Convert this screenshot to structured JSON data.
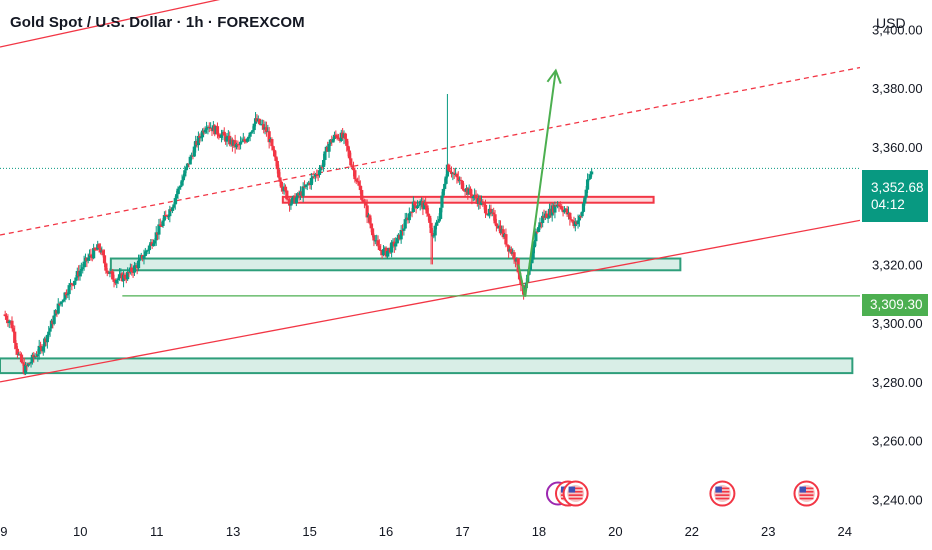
{
  "header": {
    "title": "Gold Spot / U.S. Dollar · 1h · FOREXCOM",
    "currency": "USD"
  },
  "price_badge": {
    "price": "3,352.68",
    "countdown": "04:12"
  },
  "level_badge": {
    "value": "3,309.30"
  },
  "colors": {
    "up": "#089981",
    "down": "#f23645",
    "channel": "#f23645",
    "zone_green": "#2e9e7a",
    "zone_red": "#f23645",
    "arrow": "#4caf50",
    "current_price_line": "#089981"
  },
  "chart_data": {
    "type": "candlestick",
    "title": "Gold Spot / U.S. Dollar · 1h · FOREXCOM",
    "xlabel": "",
    "ylabel": "USD",
    "ylim": [
      3233,
      3410
    ],
    "y_ticks": [
      3240,
      3260,
      3280,
      3300,
      3320,
      3340,
      3360,
      3380,
      3400
    ],
    "y_tick_labels": [
      "3,240.00",
      "3,260.00",
      "3,280.00",
      "3,300.00",
      "3,320.00",
      "3,340.00",
      "3,360.00",
      "3,380.00",
      "3,400.00"
    ],
    "x_ticks": [
      0,
      1,
      2,
      3,
      4,
      5,
      6,
      7,
      8,
      9,
      10,
      11
    ],
    "x_tick_labels": [
      "9",
      "10",
      "11",
      "13",
      "15",
      "16",
      "17",
      "18",
      "20",
      "22",
      "23",
      "24"
    ],
    "xlim": [
      -0.05,
      11.2
    ],
    "grid": false,
    "current_price": 3352.68,
    "key_level": 3309.3,
    "close_path": [
      [
        0.0,
        3303
      ],
      [
        0.1,
        3300
      ],
      [
        0.18,
        3290
      ],
      [
        0.27,
        3284
      ],
      [
        0.38,
        3288
      ],
      [
        0.5,
        3292
      ],
      [
        0.6,
        3298
      ],
      [
        0.7,
        3305
      ],
      [
        0.8,
        3310
      ],
      [
        0.95,
        3316
      ],
      [
        1.1,
        3322
      ],
      [
        1.25,
        3326
      ],
      [
        1.35,
        3318
      ],
      [
        1.45,
        3315
      ],
      [
        1.6,
        3316
      ],
      [
        1.75,
        3320
      ],
      [
        1.9,
        3326
      ],
      [
        2.05,
        3333
      ],
      [
        2.2,
        3340
      ],
      [
        2.35,
        3350
      ],
      [
        2.5,
        3360
      ],
      [
        2.65,
        3368
      ],
      [
        2.8,
        3365
      ],
      [
        2.95,
        3362
      ],
      [
        3.05,
        3360
      ],
      [
        3.15,
        3362
      ],
      [
        3.3,
        3369
      ],
      [
        3.45,
        3365
      ],
      [
        3.55,
        3355
      ],
      [
        3.65,
        3346
      ],
      [
        3.75,
        3341
      ],
      [
        3.85,
        3343
      ],
      [
        4.0,
        3348
      ],
      [
        4.15,
        3353
      ],
      [
        4.25,
        3361
      ],
      [
        4.35,
        3364
      ],
      [
        4.45,
        3363
      ],
      [
        4.55,
        3354
      ],
      [
        4.7,
        3342
      ],
      [
        4.8,
        3333
      ],
      [
        4.9,
        3325
      ],
      [
        5.0,
        3324
      ],
      [
        5.15,
        3328
      ],
      [
        5.25,
        3334
      ],
      [
        5.35,
        3340
      ],
      [
        5.45,
        3341
      ],
      [
        5.55,
        3338
      ],
      [
        5.6,
        3328
      ],
      [
        5.7,
        3337
      ],
      [
        5.8,
        3354
      ],
      [
        5.9,
        3350
      ],
      [
        6.0,
        3347
      ],
      [
        6.1,
        3344
      ],
      [
        6.2,
        3342
      ],
      [
        6.3,
        3339
      ],
      [
        6.4,
        3336
      ],
      [
        6.5,
        3332
      ],
      [
        6.6,
        3326
      ],
      [
        6.7,
        3322
      ],
      [
        6.8,
        3309
      ],
      [
        6.88,
        3318
      ],
      [
        6.95,
        3330
      ],
      [
        7.05,
        3336
      ],
      [
        7.15,
        3338
      ],
      [
        7.25,
        3341
      ],
      [
        7.35,
        3338
      ],
      [
        7.45,
        3334
      ],
      [
        7.55,
        3336
      ],
      [
        7.62,
        3346
      ],
      [
        7.7,
        3352.68
      ]
    ],
    "annotations": [
      {
        "type": "channel_line",
        "label": "upper",
        "points": [
          [
            -0.05,
            3394
          ],
          [
            7.05,
            3434
          ]
        ]
      },
      {
        "type": "channel_line",
        "label": "middle",
        "dashed": true,
        "points": [
          [
            -0.05,
            3330
          ],
          [
            11.2,
            3387
          ]
        ]
      },
      {
        "type": "channel_line",
        "label": "lower",
        "points": [
          [
            -0.05,
            3280
          ],
          [
            11.2,
            3335
          ]
        ]
      },
      {
        "type": "support_zone",
        "x": [
          -0.05,
          11.1
        ],
        "y": [
          3283,
          3288
        ]
      },
      {
        "type": "support_zone",
        "x": [
          1.4,
          8.85
        ],
        "y": [
          3318,
          3322
        ]
      },
      {
        "type": "resistance_zone",
        "x": [
          3.65,
          8.5
        ],
        "y": [
          3341,
          3343
        ]
      },
      {
        "type": "level_line",
        "x": [
          1.55,
          11.2
        ],
        "y": 3309.3
      },
      {
        "type": "arrow",
        "points": [
          [
            6.82,
            3309
          ],
          [
            7.22,
            3386
          ]
        ]
      }
    ],
    "event_markers": [
      {
        "x": 7.38,
        "y": 3242,
        "label": "US"
      },
      {
        "x": 7.48,
        "y": 3242,
        "label": "US"
      },
      {
        "x": 9.4,
        "y": 3242,
        "label": "US"
      },
      {
        "x": 10.5,
        "y": 3242,
        "label": "US"
      }
    ]
  }
}
